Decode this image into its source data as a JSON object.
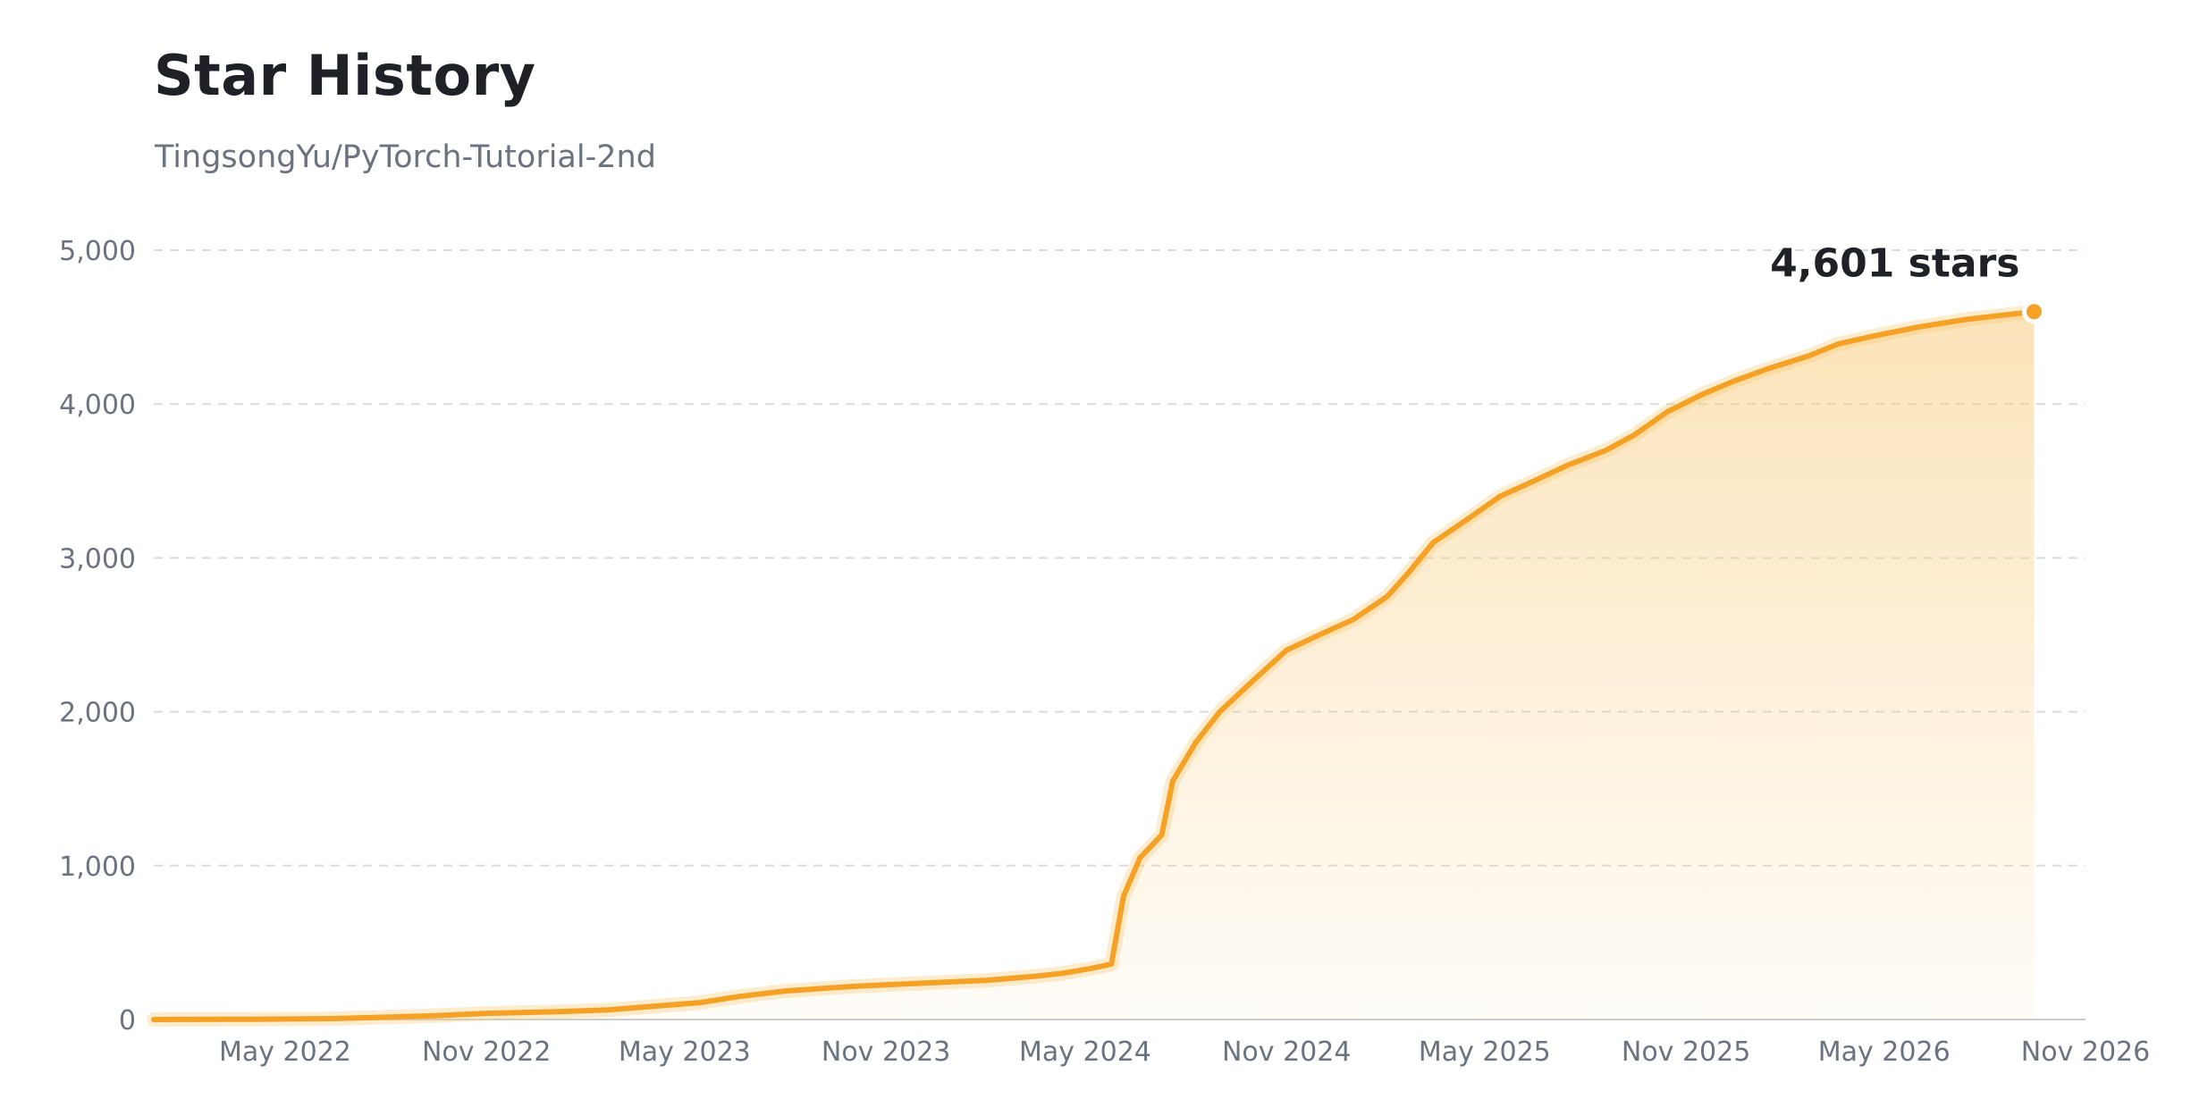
{
  "title": "Star History",
  "subtitle": "TingsongYu/PyTorch-Tutorial-2nd",
  "colors": {
    "line": "#f4a126",
    "area_top": "#f8c873",
    "grid": "#d9dce1",
    "axis_text": "#6b7280"
  },
  "chart_data": {
    "type": "area",
    "title": "Star History",
    "subtitle": "TingsongYu/PyTorch-Tutorial-2nd",
    "xlabel": "",
    "ylabel": "",
    "x_range": [
      "2022-01-01",
      "2026-11-01"
    ],
    "ylim": [
      0,
      5000
    ],
    "yticks": [
      0,
      1000,
      2000,
      3000,
      4000,
      5000
    ],
    "ytick_labels": [
      "0",
      "1,000",
      "2,000",
      "3,000",
      "4,000",
      "5,000"
    ],
    "xticks": [
      "2022-05-01",
      "2022-11-01",
      "2023-05-01",
      "2023-11-01",
      "2024-05-01",
      "2024-11-01",
      "2025-05-01",
      "2025-11-01",
      "2026-05-01",
      "2026-11-01"
    ],
    "xtick_labels": [
      "May 2022",
      "Nov 2022",
      "May 2023",
      "Nov 2023",
      "May 2024",
      "Nov 2024",
      "May 2025",
      "Nov 2025",
      "May 2026",
      "Nov 2026"
    ],
    "grid": "horizontal dashed",
    "end_label": "4,601 stars",
    "series": [
      {
        "points": [
          [
            "2022-01-01",
            0
          ],
          [
            "2022-04-01",
            2
          ],
          [
            "2022-06-15",
            6
          ],
          [
            "2022-08-01",
            15
          ],
          [
            "2022-09-15",
            25
          ],
          [
            "2022-11-01",
            40
          ],
          [
            "2023-01-01",
            50
          ],
          [
            "2023-02-20",
            62
          ],
          [
            "2023-04-01",
            85
          ],
          [
            "2023-05-15",
            110
          ],
          [
            "2023-06-20",
            150
          ],
          [
            "2023-08-01",
            185
          ],
          [
            "2023-10-01",
            215
          ],
          [
            "2023-12-01",
            235
          ],
          [
            "2024-02-01",
            255
          ],
          [
            "2024-03-15",
            280
          ],
          [
            "2024-04-10",
            300
          ],
          [
            "2024-05-05",
            330
          ],
          [
            "2024-05-25",
            360
          ],
          [
            "2024-06-05",
            800
          ],
          [
            "2024-06-20",
            1050
          ],
          [
            "2024-07-10",
            1200
          ],
          [
            "2024-07-20",
            1550
          ],
          [
            "2024-08-10",
            1800
          ],
          [
            "2024-09-01",
            2000
          ],
          [
            "2024-10-01",
            2200
          ],
          [
            "2024-11-01",
            2400
          ],
          [
            "2024-12-01",
            2500
          ],
          [
            "2025-01-01",
            2600
          ],
          [
            "2025-02-01",
            2750
          ],
          [
            "2025-02-20",
            2900
          ],
          [
            "2025-03-15",
            3100
          ],
          [
            "2025-04-15",
            3250
          ],
          [
            "2025-05-15",
            3400
          ],
          [
            "2025-06-15",
            3500
          ],
          [
            "2025-07-15",
            3600
          ],
          [
            "2025-08-20",
            3700
          ],
          [
            "2025-09-15",
            3800
          ],
          [
            "2025-10-15",
            3950
          ],
          [
            "2025-11-15",
            4060
          ],
          [
            "2025-12-15",
            4150
          ],
          [
            "2026-01-15",
            4230
          ],
          [
            "2026-02-20",
            4310
          ],
          [
            "2026-03-20",
            4390
          ],
          [
            "2026-04-20",
            4440
          ],
          [
            "2026-06-01",
            4500
          ],
          [
            "2026-07-15",
            4550
          ],
          [
            "2026-09-15",
            4601
          ]
        ]
      }
    ]
  }
}
